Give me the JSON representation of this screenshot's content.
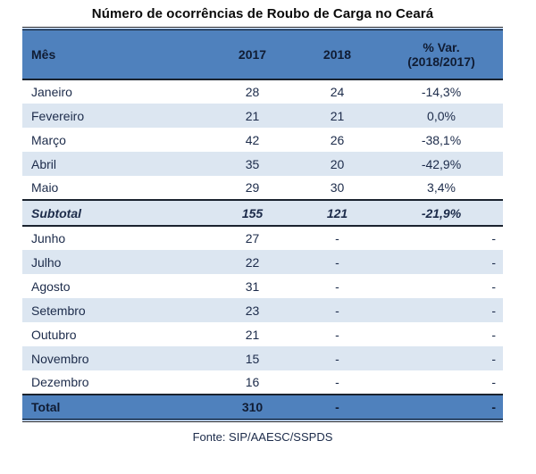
{
  "title": "Número de ocorrências de Roubo de Carga no Ceará",
  "source": "Fonte: SIP/AAESC/SSPDS",
  "colors": {
    "header_bg": "#4f81bd",
    "band_bg": "#dce6f1",
    "border": "#1a222e",
    "header_text": "#101c33",
    "body_text": "#1c2b4a"
  },
  "table": {
    "headers": {
      "month": "Mês",
      "y2017": "2017",
      "y2018": "2018",
      "var_line1": "% Var.",
      "var_line2": "(2018/2017)"
    },
    "rows": [
      {
        "kind": "normal",
        "month": "Janeiro",
        "y2017": "28",
        "y2018": "24",
        "variation": "-14,3%",
        "var_align": "center"
      },
      {
        "kind": "normal",
        "month": "Fevereiro",
        "y2017": "21",
        "y2018": "21",
        "variation": "0,0%",
        "var_align": "center"
      },
      {
        "kind": "normal",
        "month": "Março",
        "y2017": "42",
        "y2018": "26",
        "variation": "-38,1%",
        "var_align": "center"
      },
      {
        "kind": "normal",
        "month": "Abril",
        "y2017": "35",
        "y2018": "20",
        "variation": "-42,9%",
        "var_align": "center"
      },
      {
        "kind": "normal",
        "month": "Maio",
        "y2017": "29",
        "y2018": "30",
        "variation": "3,4%",
        "var_align": "center"
      },
      {
        "kind": "subtotal",
        "month": "Subtotal",
        "y2017": "155",
        "y2018": "121",
        "variation": "-21,9%",
        "var_align": "center"
      },
      {
        "kind": "normal",
        "month": "Junho",
        "y2017": "27",
        "y2018": "-",
        "variation": "-",
        "var_align": "right"
      },
      {
        "kind": "normal",
        "month": "Julho",
        "y2017": "22",
        "y2018": "-",
        "variation": "-",
        "var_align": "right"
      },
      {
        "kind": "normal",
        "month": "Agosto",
        "y2017": "31",
        "y2018": "-",
        "variation": "-",
        "var_align": "right"
      },
      {
        "kind": "normal",
        "month": "Setembro",
        "y2017": "23",
        "y2018": "-",
        "variation": "-",
        "var_align": "right"
      },
      {
        "kind": "normal",
        "month": "Outubro",
        "y2017": "21",
        "y2018": "-",
        "variation": "-",
        "var_align": "right"
      },
      {
        "kind": "normal",
        "month": "Novembro",
        "y2017": "15",
        "y2018": "-",
        "variation": "-",
        "var_align": "right"
      },
      {
        "kind": "normal",
        "month": "Dezembro",
        "y2017": "16",
        "y2018": "-",
        "variation": "-",
        "var_align": "right"
      },
      {
        "kind": "total",
        "month": "Total",
        "y2017": "310",
        "y2018": "-",
        "variation": "-",
        "var_align": "right"
      }
    ]
  }
}
